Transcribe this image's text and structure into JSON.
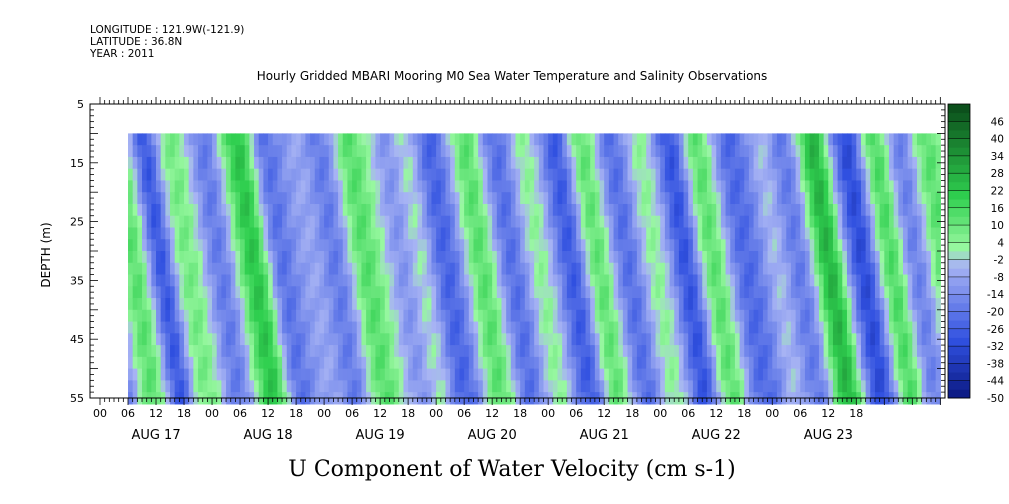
{
  "header": {
    "longitude": "LONGITUDE : 121.9W(-121.9)",
    "latitude": "LATITUDE : 36.8N",
    "year": "YEAR : 2011"
  },
  "chart_data": {
    "type": "heatmap",
    "title": "Hourly Gridded MBARI Mooring M0 Sea Water Temperature and Salinity Observations",
    "xlabel": "U Component of Water Velocity (cm s-1)",
    "ylabel": "DEPTH (m)",
    "ylim": [
      5,
      55
    ],
    "y_inverted": true,
    "data_depth_range": [
      10,
      55
    ],
    "data_time_range_hours": [
      6,
      179
    ],
    "y_ticks": [
      5,
      15,
      25,
      35,
      45,
      55
    ],
    "x_hour_ticks": [
      "00",
      "06",
      "12",
      "18",
      "00",
      "06",
      "12",
      "18",
      "00",
      "06",
      "12",
      "18",
      "00",
      "06",
      "12",
      "18",
      "00",
      "06",
      "12",
      "18",
      "00",
      "06",
      "12",
      "18",
      "00",
      "06",
      "12",
      "18"
    ],
    "x_days": [
      "AUG 17",
      "AUG 18",
      "AUG 19",
      "AUG 20",
      "AUG 21",
      "AUG 22",
      "AUG 23"
    ],
    "colorbar": {
      "labels": [
        "46",
        "40",
        "34",
        "28",
        "22",
        "16",
        "10",
        "4",
        "-2",
        "-8",
        "-14",
        "-20",
        "-26",
        "-32",
        "-38",
        "-44",
        "-50"
      ],
      "range": [
        -50,
        52
      ],
      "colors": {
        "dark_green": "#0a4a1a",
        "green": "#2fcf4f",
        "light_green": "#98f8a0",
        "light_blue": "#a8b4f4",
        "blue": "#3050e0",
        "dark_blue": "#0a1880"
      }
    },
    "pattern": {
      "comment_free": true,
      "strong_green_hours": [
        12,
        30,
        58,
        152,
        166
      ],
      "strong_blue_hours": [
        9,
        40,
        68,
        98,
        122,
        138,
        160
      ]
    }
  }
}
